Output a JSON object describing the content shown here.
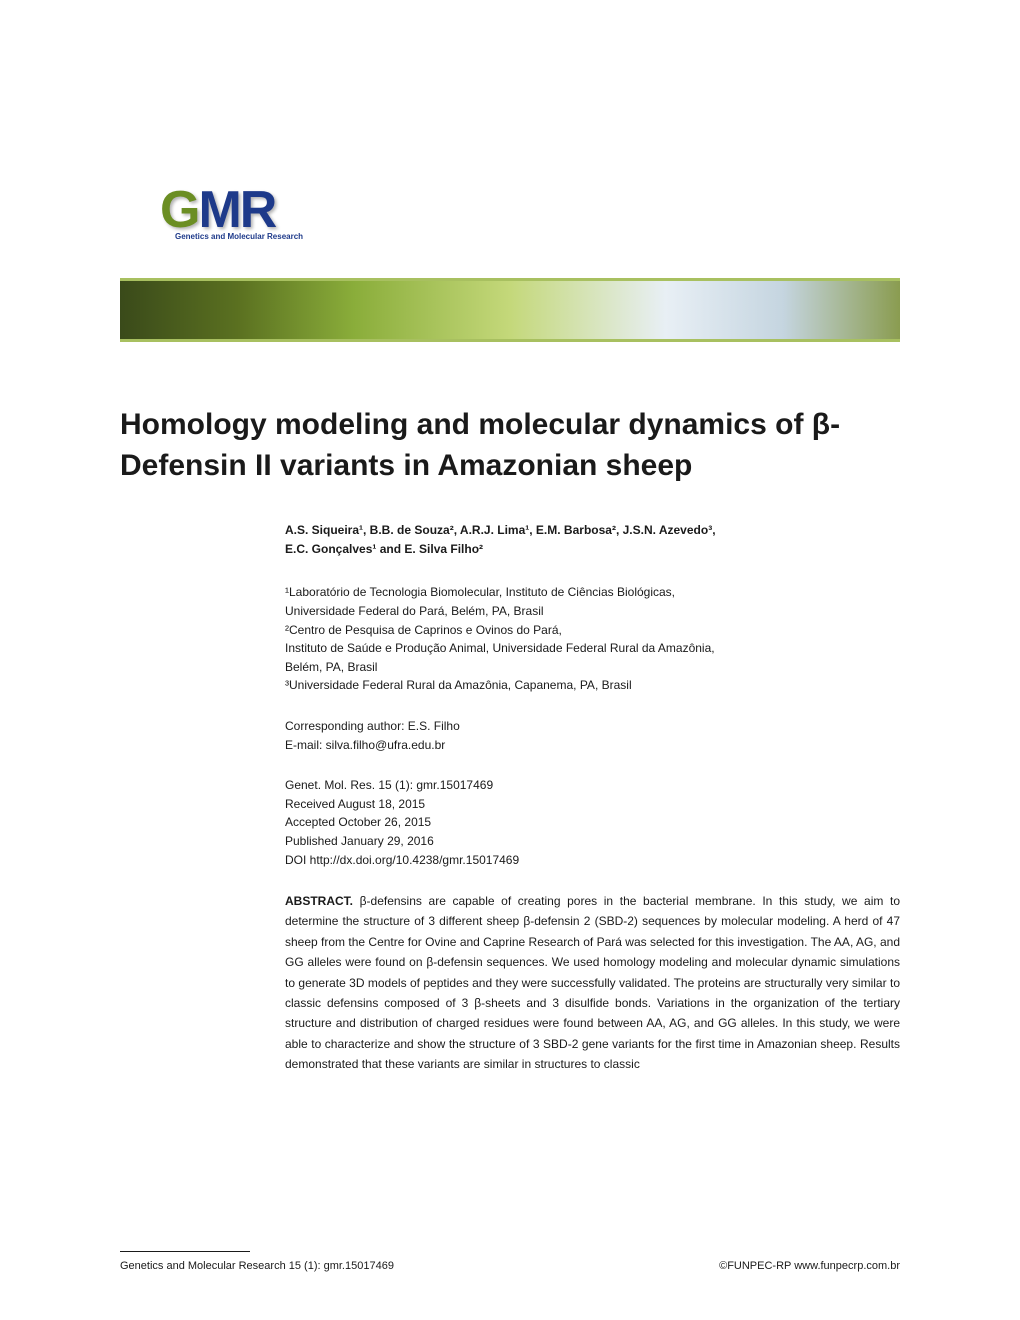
{
  "logo": {
    "letters": [
      "G",
      "M",
      "R"
    ],
    "subtitle": "Genetics and Molecular Research"
  },
  "title": "Homology modeling and molecular dynamics of β-Defensin II variants in Amazonian sheep",
  "authors_line1": "A.S. Siqueira¹, B.B. de Souza², A.R.J. Lima¹, E.M. Barbosa², J.S.N. Azevedo³,",
  "authors_line2": "E.C. Gonçalves¹ and E. Silva Filho²",
  "affiliations": {
    "a1_line1": "¹Laboratório de Tecnologia Biomolecular, Instituto de Ciências Biológicas,",
    "a1_line2": "Universidade Federal do Pará, Belém, PA, Brasil",
    "a2_line1": "²Centro de Pesquisa de Caprinos e Ovinos do Pará,",
    "a2_line2": "Instituto de Saúde e Produção Animal, Universidade Federal Rural da Amazônia,",
    "a2_line3": "Belém, PA, Brasil",
    "a3_line1": "³Universidade Federal Rural da Amazônia, Capanema, PA, Brasil"
  },
  "corresponding": {
    "author": "Corresponding author: E.S. Filho",
    "email": "E-mail: silva.filho@ufra.edu.br"
  },
  "pub_info": {
    "citation": "Genet. Mol. Res. 15 (1): gmr.15017469",
    "received": "Received August 18, 2015",
    "accepted": "Accepted October 26, 2015",
    "published": "Published January 29, 2016",
    "doi": "DOI http://dx.doi.org/10.4238/gmr.15017469"
  },
  "abstract": {
    "label": "ABSTRACT.",
    "text": " β-defensins are capable of creating pores in the bacterial membrane. In this study, we aim to determine the structure of 3 different sheep β-defensin 2 (SBD-2) sequences by molecular modeling. A herd of 47 sheep from the Centre for Ovine and Caprine Research of Pará was selected for this investigation. The AA, AG, and GG alleles were found on β-defensin sequences. We used homology modeling and molecular dynamic simulations to generate 3D models of peptides and they were successfully validated. The proteins are structurally very similar to classic defensins composed of 3 β-sheets and 3 disulfide bonds. Variations in the organization of the tertiary structure and distribution of charged residues were found between AA, AG, and GG alleles.  In this study, we were able to characterize and show the structure of 3 SBD-2 gene variants for the first time in Amazonian sheep. Results demonstrated that these variants are similar in structures to classic"
  },
  "footer": {
    "left": "Genetics and Molecular Research 15 (1): gmr.15017469",
    "right": "©FUNPEC-RP www.funpecrp.com.br"
  },
  "colors": {
    "title_color": "#1a1a1a",
    "text_color": "#1a1a1a",
    "logo_green": "#6b8e23",
    "logo_blue": "#1e3a8a",
    "background": "#ffffff"
  },
  "typography": {
    "title_fontsize": 30,
    "body_fontsize": 12,
    "footer_fontsize": 11,
    "font_family": "Arial, Helvetica, sans-serif"
  }
}
